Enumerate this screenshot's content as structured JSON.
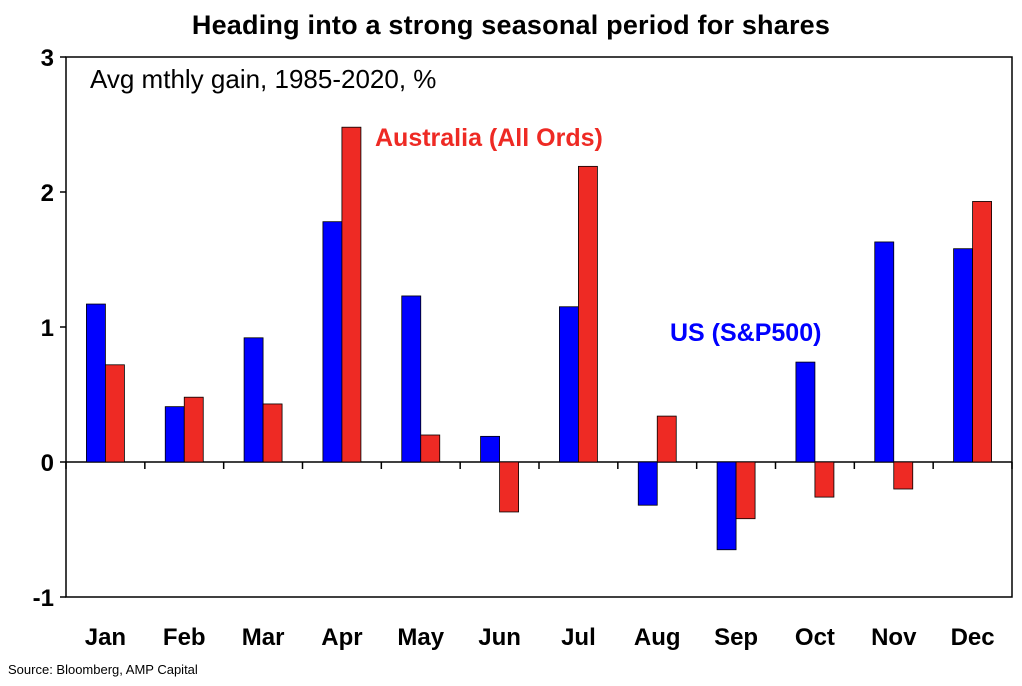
{
  "chart_data": {
    "type": "bar",
    "title": "Heading into a strong seasonal period for shares",
    "subtitle": "Avg mthly gain, 1985-2020, %",
    "categories": [
      "Jan",
      "Feb",
      "Mar",
      "Apr",
      "May",
      "Jun",
      "Jul",
      "Aug",
      "Sep",
      "Oct",
      "Nov",
      "Dec"
    ],
    "series": [
      {
        "name": "US (S&P500)",
        "color": "#0000ff",
        "values": [
          1.17,
          0.41,
          0.92,
          1.78,
          1.23,
          0.19,
          1.15,
          -0.32,
          -0.65,
          0.74,
          1.63,
          1.58
        ]
      },
      {
        "name": "Australia (All Ords)",
        "color": "#ee2a24",
        "values": [
          0.72,
          0.48,
          0.43,
          2.48,
          0.2,
          -0.37,
          2.19,
          0.34,
          -0.42,
          -0.26,
          -0.2,
          1.93
        ]
      }
    ],
    "ylim": [
      -1,
      3
    ],
    "yticks": [
      "-1",
      "0",
      "1",
      "2",
      "3"
    ],
    "grid": false,
    "annotations": {
      "australia": "Australia (All Ords)",
      "us": "US (S&P500)"
    }
  },
  "source": "Source: Bloomberg, AMP Capital"
}
